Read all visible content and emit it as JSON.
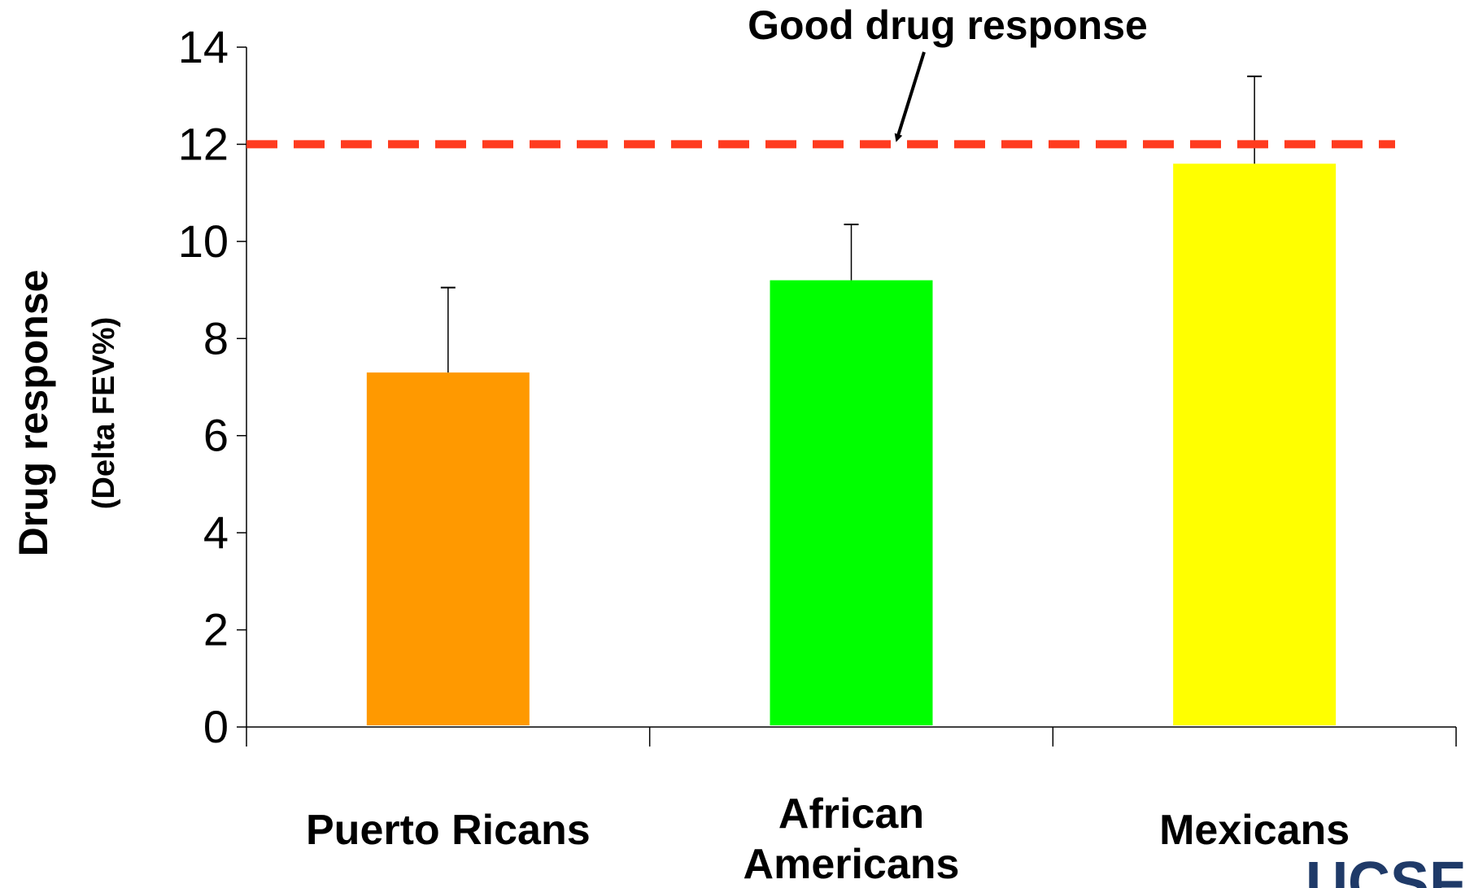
{
  "chart_data": {
    "type": "bar",
    "categories": [
      "Puerto Ricans",
      "African Americans",
      "Mexicans"
    ],
    "category_lines": [
      [
        "Puerto Ricans"
      ],
      [
        "African",
        "Americans"
      ],
      [
        "Mexicans"
      ]
    ],
    "values": [
      7.3,
      9.2,
      11.6
    ],
    "error_upper": [
      9.05,
      10.35,
      13.4
    ],
    "colors": [
      "#FF9900",
      "#00FF00",
      "#FFFF00"
    ],
    "ylabel": "Drug response",
    "ylabel_sub": "(Delta FEV%)",
    "xlabel": "",
    "ylim": [
      0,
      14
    ],
    "yticks": [
      0,
      2,
      4,
      6,
      8,
      10,
      12,
      14
    ],
    "reference_line": {
      "value": 12,
      "color": "#FF3B1F",
      "style": "dashed"
    },
    "annotation": {
      "text": "Good drug response",
      "points_to": 12
    },
    "grid": false
  },
  "branding": {
    "logo_text": "UCSF"
  }
}
